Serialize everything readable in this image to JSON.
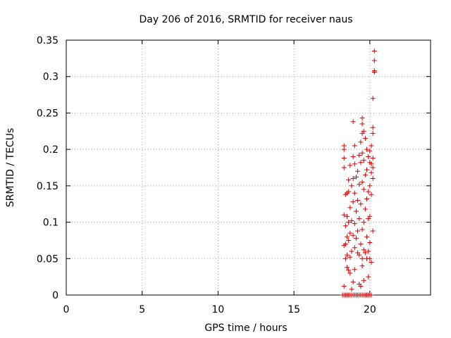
{
  "chart_data": {
    "type": "scatter",
    "title": "Day 206 of 2016, SRMTID for receiver naus",
    "xlabel": "GPS time / hours",
    "ylabel": "SRMTID / TECUs",
    "xlim": [
      0,
      24
    ],
    "ylim": [
      0,
      0.35
    ],
    "xticks": [
      "0",
      "5",
      "10",
      "15",
      "20"
    ],
    "yticks": [
      "0",
      "0.05",
      "0.1",
      "0.15",
      "0.2",
      "0.25",
      "0.3",
      "0.35"
    ],
    "grid": true,
    "marker": "+",
    "color": "#d40000",
    "series": [
      {
        "points": [
          [
            18.2,
            0.0
          ],
          [
            18.3,
            0.0
          ],
          [
            18.4,
            0.0
          ],
          [
            18.5,
            0.0
          ],
          [
            18.6,
            0.0
          ],
          [
            18.7,
            0.0
          ],
          [
            18.8,
            0.0
          ],
          [
            18.9,
            0.0
          ],
          [
            19.0,
            0.0
          ],
          [
            19.1,
            0.0
          ],
          [
            19.2,
            0.0
          ],
          [
            19.3,
            0.0
          ],
          [
            19.4,
            0.0
          ],
          [
            19.5,
            0.0
          ],
          [
            19.6,
            0.0
          ],
          [
            19.7,
            0.0
          ],
          [
            19.8,
            0.0
          ],
          [
            19.9,
            0.0
          ],
          [
            20.0,
            0.0
          ],
          [
            20.1,
            0.0
          ],
          [
            18.3,
            0.012
          ],
          [
            18.8,
            0.008
          ],
          [
            18.9,
            0.018
          ],
          [
            19.3,
            0.015
          ],
          [
            19.4,
            0.012
          ],
          [
            19.6,
            0.02
          ],
          [
            19.9,
            0.025
          ],
          [
            18.7,
            0.03
          ],
          [
            18.6,
            0.034
          ],
          [
            18.5,
            0.038
          ],
          [
            19.0,
            0.035
          ],
          [
            19.5,
            0.04
          ],
          [
            20.0,
            0.05
          ],
          [
            20.1,
            0.045
          ],
          [
            19.8,
            0.05
          ],
          [
            18.4,
            0.05
          ],
          [
            18.5,
            0.055
          ],
          [
            18.7,
            0.052
          ],
          [
            18.8,
            0.06
          ],
          [
            19.0,
            0.065
          ],
          [
            19.2,
            0.058
          ],
          [
            19.3,
            0.055
          ],
          [
            19.5,
            0.05
          ],
          [
            19.6,
            0.062
          ],
          [
            19.7,
            0.058
          ],
          [
            19.9,
            0.06
          ],
          [
            18.3,
            0.068
          ],
          [
            18.4,
            0.07
          ],
          [
            18.6,
            0.075
          ],
          [
            19.1,
            0.078
          ],
          [
            19.4,
            0.07
          ],
          [
            20.0,
            0.072
          ],
          [
            18.5,
            0.08
          ],
          [
            18.7,
            0.085
          ],
          [
            18.9,
            0.082
          ],
          [
            19.2,
            0.088
          ],
          [
            19.5,
            0.09
          ],
          [
            19.8,
            0.08
          ],
          [
            20.2,
            0.088
          ],
          [
            18.4,
            0.095
          ],
          [
            18.6,
            0.1
          ],
          [
            18.8,
            0.102
          ],
          [
            19.0,
            0.098
          ],
          [
            19.3,
            0.105
          ],
          [
            19.6,
            0.1
          ],
          [
            19.9,
            0.105
          ],
          [
            20.0,
            0.108
          ],
          [
            18.3,
            0.11
          ],
          [
            18.5,
            0.108
          ],
          [
            19.1,
            0.115
          ],
          [
            19.7,
            0.118
          ],
          [
            18.7,
            0.12
          ],
          [
            19.4,
            0.125
          ],
          [
            19.2,
            0.13
          ],
          [
            18.9,
            0.128
          ],
          [
            19.8,
            0.132
          ],
          [
            18.4,
            0.138
          ],
          [
            18.5,
            0.14
          ],
          [
            18.6,
            0.142
          ],
          [
            19.0,
            0.14
          ],
          [
            19.6,
            0.145
          ],
          [
            19.9,
            0.142
          ],
          [
            20.1,
            0.138
          ],
          [
            18.8,
            0.15
          ],
          [
            19.3,
            0.152
          ],
          [
            19.5,
            0.155
          ],
          [
            20.0,
            0.15
          ],
          [
            18.6,
            0.158
          ],
          [
            18.9,
            0.16
          ],
          [
            19.1,
            0.162
          ],
          [
            19.7,
            0.165
          ],
          [
            20.2,
            0.16
          ],
          [
            20.1,
            0.168
          ],
          [
            19.2,
            0.17
          ],
          [
            19.8,
            0.172
          ],
          [
            20.2,
            0.175
          ],
          [
            18.3,
            0.175
          ],
          [
            18.7,
            0.178
          ],
          [
            19.0,
            0.18
          ],
          [
            19.4,
            0.182
          ],
          [
            19.6,
            0.185
          ],
          [
            20.0,
            0.182
          ],
          [
            20.1,
            0.18
          ],
          [
            18.3,
            0.188
          ],
          [
            18.9,
            0.19
          ],
          [
            19.3,
            0.192
          ],
          [
            19.5,
            0.195
          ],
          [
            19.9,
            0.19
          ],
          [
            20.2,
            0.188
          ],
          [
            18.3,
            0.2
          ],
          [
            18.3,
            0.205
          ],
          [
            19.0,
            0.205
          ],
          [
            19.8,
            0.2
          ],
          [
            20.0,
            0.198
          ],
          [
            19.4,
            0.21
          ],
          [
            20.1,
            0.205
          ],
          [
            19.7,
            0.215
          ],
          [
            19.5,
            0.222
          ],
          [
            19.6,
            0.225
          ],
          [
            20.2,
            0.222
          ],
          [
            20.2,
            0.23
          ],
          [
            19.5,
            0.235
          ],
          [
            18.9,
            0.238
          ],
          [
            19.5,
            0.243
          ],
          [
            20.2,
            0.27
          ],
          [
            20.3,
            0.306
          ],
          [
            20.3,
            0.308
          ],
          [
            20.3,
            0.322
          ],
          [
            20.3,
            0.335
          ]
        ]
      }
    ]
  }
}
